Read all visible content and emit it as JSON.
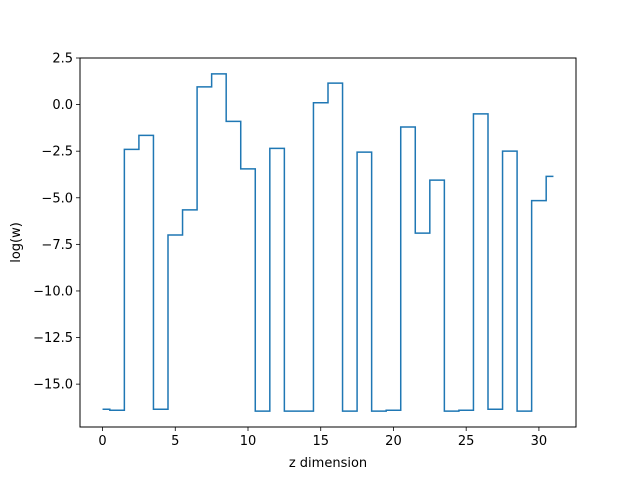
{
  "chart_data": {
    "type": "line",
    "drawstyle": "steps-mid",
    "title": "",
    "xlabel": "z dimension",
    "ylabel": "log(w)",
    "xlim": [
      -1.55,
      32.55
    ],
    "ylim": [
      -17.3,
      2.5
    ],
    "xticks": [
      0,
      5,
      10,
      15,
      20,
      25,
      30
    ],
    "xtick_labels": [
      "0",
      "5",
      "10",
      "15",
      "20",
      "25",
      "30"
    ],
    "yticks": [
      2.5,
      0.0,
      -2.5,
      -5.0,
      -7.5,
      -10.0,
      -12.5,
      -15.0
    ],
    "ytick_labels": [
      "2.5",
      "0.0",
      "−2.5",
      "−5.0",
      "−7.5",
      "−10.0",
      "−12.5",
      "−15.0"
    ],
    "grid": false,
    "legend": "none",
    "series": [
      {
        "color": "#1f77b4",
        "x": [
          0,
          1,
          2,
          3,
          4,
          5,
          6,
          7,
          8,
          9,
          10,
          11,
          12,
          13,
          14,
          15,
          16,
          17,
          18,
          19,
          20,
          21,
          22,
          23,
          24,
          25,
          26,
          27,
          28,
          29,
          30,
          31
        ],
        "y": [
          -16.35,
          -16.4,
          -2.4,
          -1.65,
          -16.35,
          -7.0,
          -5.65,
          0.95,
          1.65,
          -0.9,
          -3.45,
          -16.45,
          -2.35,
          -16.45,
          -16.45,
          0.1,
          1.15,
          -16.45,
          -2.55,
          -16.45,
          -16.4,
          -1.2,
          -6.9,
          -4.05,
          -16.45,
          -16.4,
          -0.5,
          -16.35,
          -2.5,
          -16.45,
          -5.15,
          -3.85
        ]
      }
    ]
  }
}
